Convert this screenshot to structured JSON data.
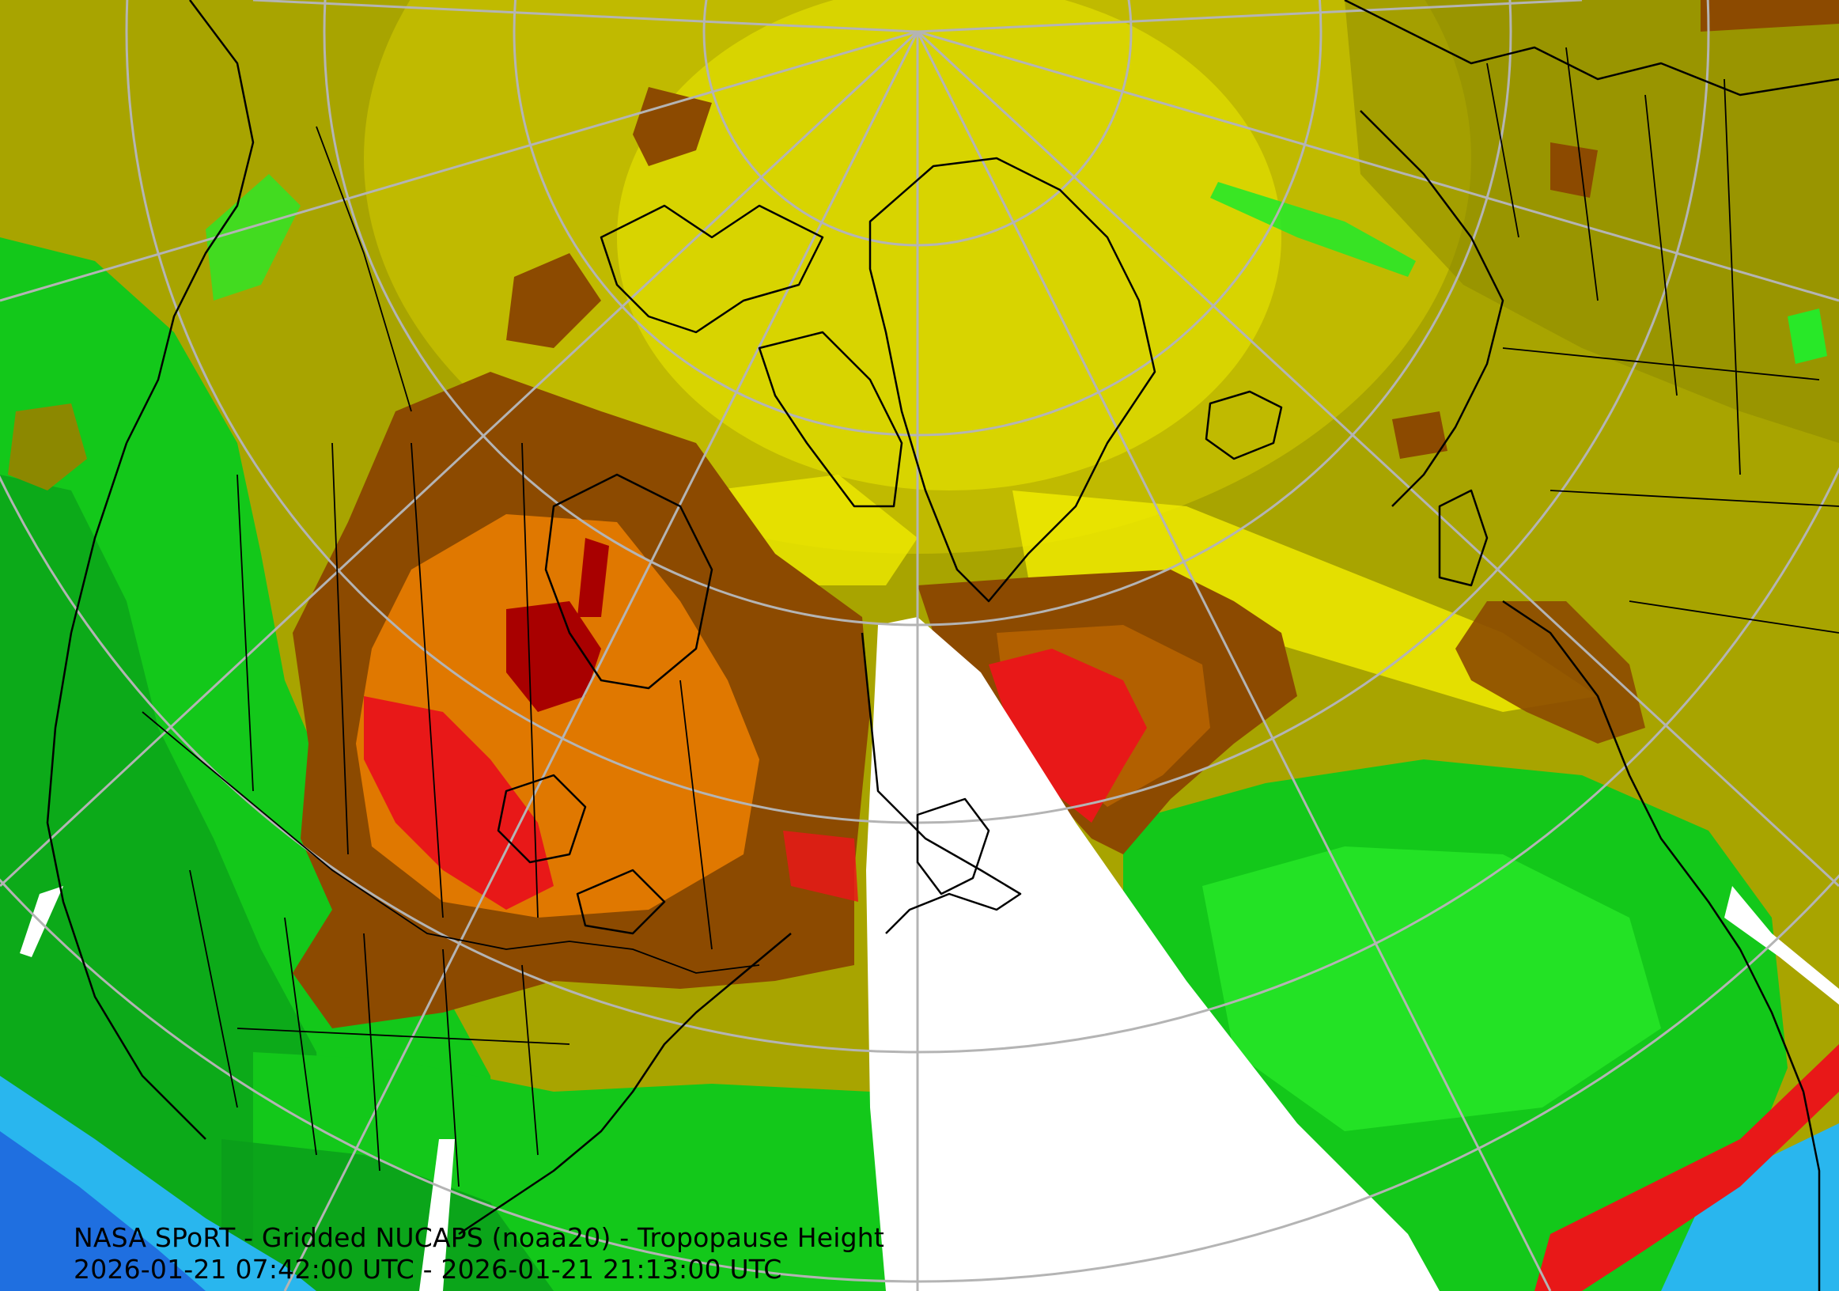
{
  "map": {
    "title_line": "NASA SPoRT - Gridded NUCAPS (noaa20) - Tropopause Height",
    "time_range": "2026-01-21 07:42:00 UTC - 2026-01-21 21:13:00 UTC",
    "projection": "north-polar-stereographic",
    "field": "tropopause-height",
    "colors": {
      "no_data": "#ffffff",
      "deep_blue": "#1f6fe0",
      "light_blue": "#29b6ee",
      "cyan": "#30d6e8",
      "dark_green": "#0a9c1a",
      "green": "#13c81a",
      "bright_green": "#28e828",
      "olive_dark": "#8c8800",
      "olive": "#a8a400",
      "khaki": "#c0ba00",
      "yellow": "#d8d400",
      "bright_yellow": "#eeea00",
      "brown": "#8c4a00",
      "orange_brown": "#b86400",
      "orange": "#e07800",
      "red": "#e81818",
      "dark_red": "#a80000",
      "graticule": "#b4b4b4",
      "coastline": "#000000"
    }
  }
}
